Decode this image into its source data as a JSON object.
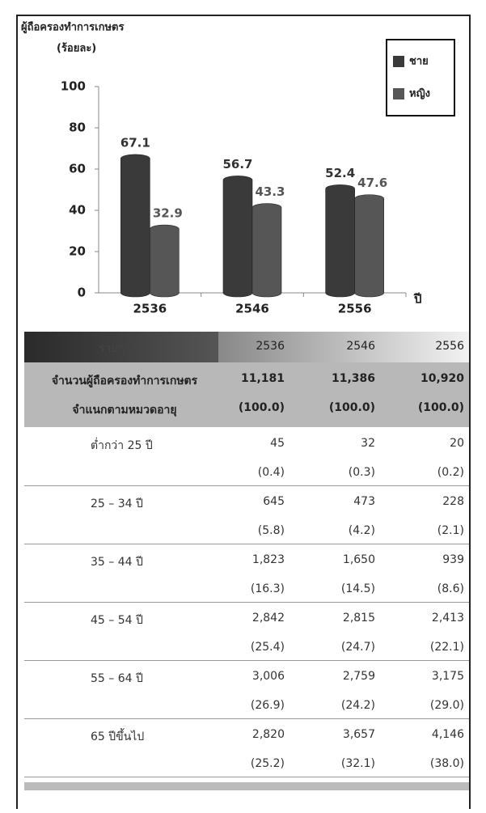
{
  "chart_data": {
    "type": "bar",
    "title": "ผู้ถือครองทำการเกษตร",
    "ylabel": "(ร้อยละ)",
    "xlabel": "ปี",
    "categories": [
      "2536",
      "2546",
      "2556"
    ],
    "series": [
      {
        "name": "ชาย",
        "color": "#3a3a3a",
        "values": [
          67.1,
          56.7,
          52.4
        ]
      },
      {
        "name": "หญิง",
        "color": "#565656",
        "values": [
          32.9,
          43.3,
          47.6
        ]
      }
    ],
    "ylim": [
      0,
      100
    ],
    "yticks": [
      0,
      20,
      40,
      60,
      80,
      100
    ],
    "legend": "upper right"
  },
  "table": {
    "header": [
      "รายการ",
      "2536",
      "2546",
      "2556"
    ],
    "total": {
      "label": [
        "จำนวนผู้ถือครองทำการเกษตร",
        "จำแนกตามหมวดอายุ"
      ],
      "counts": [
        "11,181",
        "11,386",
        "10,920"
      ],
      "shares": [
        "(100.0)",
        "(100.0)",
        "(100.0)"
      ]
    },
    "rows": [
      {
        "label": "ต่ำกว่า 25 ปี",
        "counts": [
          "45",
          "32",
          "20"
        ],
        "shares": [
          "(0.4)",
          "(0.3)",
          "(0.2)"
        ]
      },
      {
        "label": "25 – 34 ปี",
        "counts": [
          "645",
          "473",
          "228"
        ],
        "shares": [
          "(5.8)",
          "(4.2)",
          "(2.1)"
        ]
      },
      {
        "label": "35 – 44 ปี",
        "counts": [
          "1,823",
          "1,650",
          "939"
        ],
        "shares": [
          "(16.3)",
          "(14.5)",
          "(8.6)"
        ]
      },
      {
        "label": "45 – 54 ปี",
        "counts": [
          "2,842",
          "2,815",
          "2,413"
        ],
        "shares": [
          "(25.4)",
          "(24.7)",
          "(22.1)"
        ]
      },
      {
        "label": "55 – 64 ปี",
        "counts": [
          "3,006",
          "2,759",
          "3,175"
        ],
        "shares": [
          "(26.9)",
          "(24.2)",
          "(29.0)"
        ]
      },
      {
        "label": "65 ปีขึ้นไป",
        "counts": [
          "2,820",
          "3,657",
          "4,146"
        ],
        "shares": [
          "(25.2)",
          "(32.1)",
          "(38.0)"
        ]
      }
    ]
  }
}
